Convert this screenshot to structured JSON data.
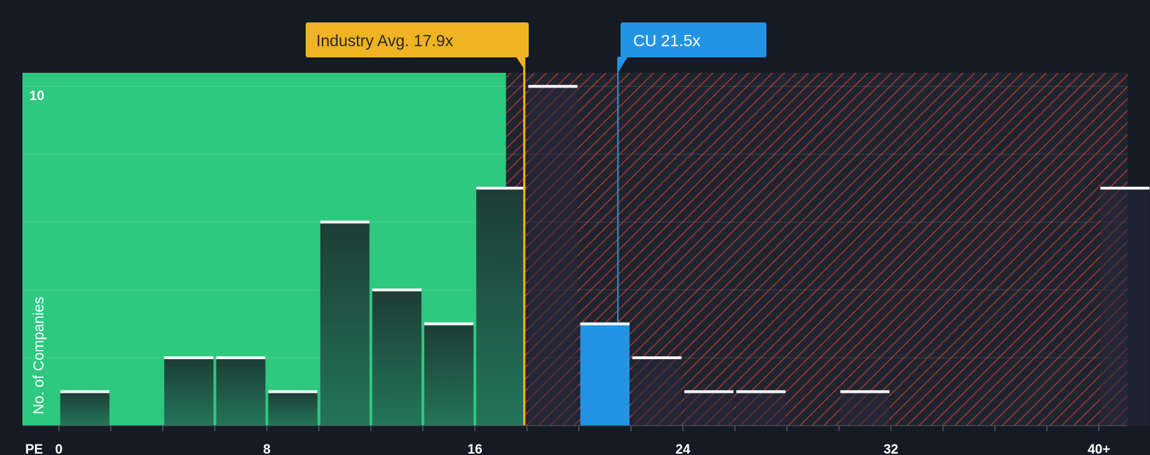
{
  "colors": {
    "background": "#151b24",
    "fair_zone": "#2ec87e",
    "overvalued_zone": "#1f2530",
    "hatch": "#c0392b",
    "bar_dark": "#1f4a3b",
    "bar_cap": "#ffffff",
    "industry_avg": "#f0b321",
    "company": "#2394e4",
    "axis_text": "#ffffff",
    "tick": "#505862"
  },
  "chart_data": {
    "type": "bar",
    "title": "",
    "xlabel": "PE",
    "ylabel": "No. of Companies",
    "xlim": [
      -1.4,
      41.1
    ],
    "ylim": [
      0,
      10.4
    ],
    "x_ticks": [
      0,
      8,
      16,
      24,
      32,
      40
    ],
    "x_tick_labels": [
      "0",
      "8",
      "16",
      "24",
      "32",
      "40+"
    ],
    "minor_ticks": [
      2,
      4,
      6,
      10,
      12,
      14,
      18,
      20,
      22,
      26,
      28,
      30,
      34,
      36,
      38
    ],
    "y_ticks": [
      10
    ],
    "y_tick_labels": [
      "10"
    ],
    "gridlines": [
      2,
      4,
      6,
      8,
      10
    ],
    "fair_zone_max": 17.2,
    "bin_width": 2,
    "bins": [
      {
        "start": 0,
        "value": 1
      },
      {
        "start": 4,
        "value": 2
      },
      {
        "start": 6,
        "value": 2
      },
      {
        "start": 8,
        "value": 1
      },
      {
        "start": 10,
        "value": 6
      },
      {
        "start": 12,
        "value": 4
      },
      {
        "start": 14,
        "value": 3
      },
      {
        "start": 16,
        "value": 7
      },
      {
        "start": 18,
        "value": 10
      },
      {
        "start": 20,
        "value": 3,
        "highlight": true
      },
      {
        "start": 22,
        "value": 2
      },
      {
        "start": 24,
        "value": 1
      },
      {
        "start": 26,
        "value": 1
      },
      {
        "start": 30,
        "value": 1
      },
      {
        "start": 40,
        "value": 7
      }
    ],
    "industry_avg": {
      "value": 17.9,
      "label": "Industry Avg. 17.9x"
    },
    "company": {
      "value": 21.5,
      "label": "CU 21.5x"
    }
  }
}
